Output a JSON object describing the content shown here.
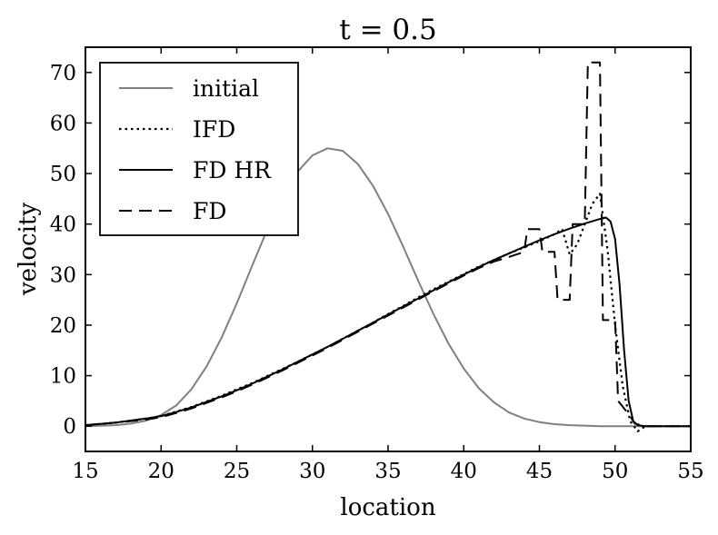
{
  "chart_data": {
    "type": "line",
    "title": "t = 0.5",
    "xlabel": "location",
    "ylabel": "velocity",
    "xlim": [
      15,
      55
    ],
    "ylim": [
      -5,
      75
    ],
    "xticks": [
      15,
      20,
      25,
      30,
      35,
      40,
      45,
      50,
      55
    ],
    "yticks": [
      0,
      10,
      20,
      30,
      40,
      50,
      60,
      70
    ],
    "grid": false,
    "legend_position": "top-left",
    "series": [
      {
        "name": "initial",
        "color": "#808080",
        "style": "solid",
        "x": [
          15,
          16,
          17,
          18,
          19,
          20,
          21,
          22,
          23,
          24,
          25,
          26,
          27,
          28,
          29,
          30,
          31,
          32,
          33,
          34,
          35,
          36,
          37,
          38,
          39,
          40,
          41,
          42,
          43,
          44,
          45,
          46,
          47,
          48,
          49,
          50,
          51,
          52,
          53,
          54,
          55
        ],
        "y": [
          0.0,
          0.1,
          0.2,
          0.5,
          1.1,
          2.2,
          4.1,
          7.3,
          11.8,
          17.5,
          24.3,
          31.6,
          38.8,
          45.2,
          50.3,
          53.6,
          55.0,
          54.5,
          51.9,
          47.6,
          42.0,
          35.5,
          28.7,
          22.2,
          16.3,
          11.4,
          7.5,
          4.7,
          2.7,
          1.5,
          0.8,
          0.4,
          0.2,
          0.1,
          0.0,
          0.0,
          0.0,
          0.0,
          0.0,
          0.0,
          0.0
        ]
      },
      {
        "name": "IFD",
        "color": "#000000",
        "style": "dotted",
        "x": [
          15,
          17,
          19,
          20,
          21,
          22,
          23,
          24,
          25,
          26,
          27,
          28,
          29,
          30,
          31,
          32,
          33,
          34,
          35,
          36,
          37,
          38,
          39,
          40,
          41,
          42,
          43,
          44,
          45,
          46,
          46.5,
          47,
          47.5,
          48,
          48.5,
          49,
          49.5,
          50,
          50.5,
          51,
          51.5,
          52,
          55
        ],
        "y": [
          0.2,
          0.7,
          1.5,
          2.0,
          2.9,
          3.8,
          4.9,
          6.0,
          7.3,
          8.5,
          9.9,
          11.3,
          12.7,
          14.2,
          15.7,
          17.3,
          18.9,
          20.5,
          22.2,
          23.8,
          25.5,
          27.1,
          28.6,
          30.1,
          31.6,
          32.9,
          34.2,
          35.4,
          36.6,
          38.0,
          39.0,
          34.0,
          36.0,
          40.0,
          44.0,
          46.0,
          35.0,
          20.0,
          8.0,
          1.0,
          -1.0,
          0.0,
          0.0
        ]
      },
      {
        "name": "FD HR",
        "color": "#000000",
        "style": "solid",
        "x": [
          15,
          17,
          19,
          20,
          21,
          22,
          23,
          24,
          25,
          26,
          27,
          28,
          29,
          30,
          31,
          32,
          33,
          34,
          35,
          36,
          37,
          38,
          39,
          40,
          41,
          42,
          43,
          44,
          45,
          46,
          47,
          48,
          49,
          49.4,
          49.7,
          50.0,
          50.3,
          50.6,
          50.9,
          51.2,
          51.5,
          52,
          55
        ],
        "y": [
          0.2,
          0.7,
          1.5,
          2.0,
          2.8,
          3.7,
          4.8,
          5.9,
          7.1,
          8.4,
          9.8,
          11.2,
          12.7,
          14.2,
          15.7,
          17.3,
          18.9,
          20.5,
          22.1,
          23.7,
          25.3,
          26.9,
          28.5,
          30.0,
          31.5,
          32.9,
          34.2,
          35.5,
          36.8,
          38.0,
          39.1,
          40.1,
          41.0,
          41.3,
          40.5,
          37.0,
          28.0,
          15.0,
          5.0,
          1.0,
          0.2,
          0.0,
          0.0
        ]
      },
      {
        "name": "FD",
        "color": "#000000",
        "style": "dashed",
        "x": [
          15,
          17,
          19,
          20,
          21,
          22,
          23,
          24,
          25,
          26,
          27,
          28,
          29,
          30,
          31,
          32,
          33,
          34,
          35,
          36,
          37,
          38,
          39,
          40,
          41,
          42,
          43,
          44,
          44.2,
          45,
          45.2,
          46,
          46.2,
          47,
          47.2,
          48,
          48.2,
          49,
          49.2,
          50,
          50.2,
          51,
          51.3,
          52,
          55
        ],
        "y": [
          0.2,
          0.7,
          1.3,
          1.8,
          2.6,
          3.5,
          4.6,
          5.7,
          6.9,
          8.2,
          9.6,
          11.0,
          12.5,
          14.0,
          15.5,
          17.1,
          18.7,
          20.3,
          21.9,
          23.5,
          25.1,
          26.7,
          28.3,
          29.8,
          31.3,
          32.6,
          33.5,
          34.5,
          39.0,
          39.0,
          34.5,
          34.5,
          25.0,
          25.0,
          40.0,
          40.0,
          72.0,
          72.0,
          21.0,
          21.0,
          5.0,
          2.0,
          0.5,
          0.0,
          0.0
        ]
      }
    ]
  }
}
